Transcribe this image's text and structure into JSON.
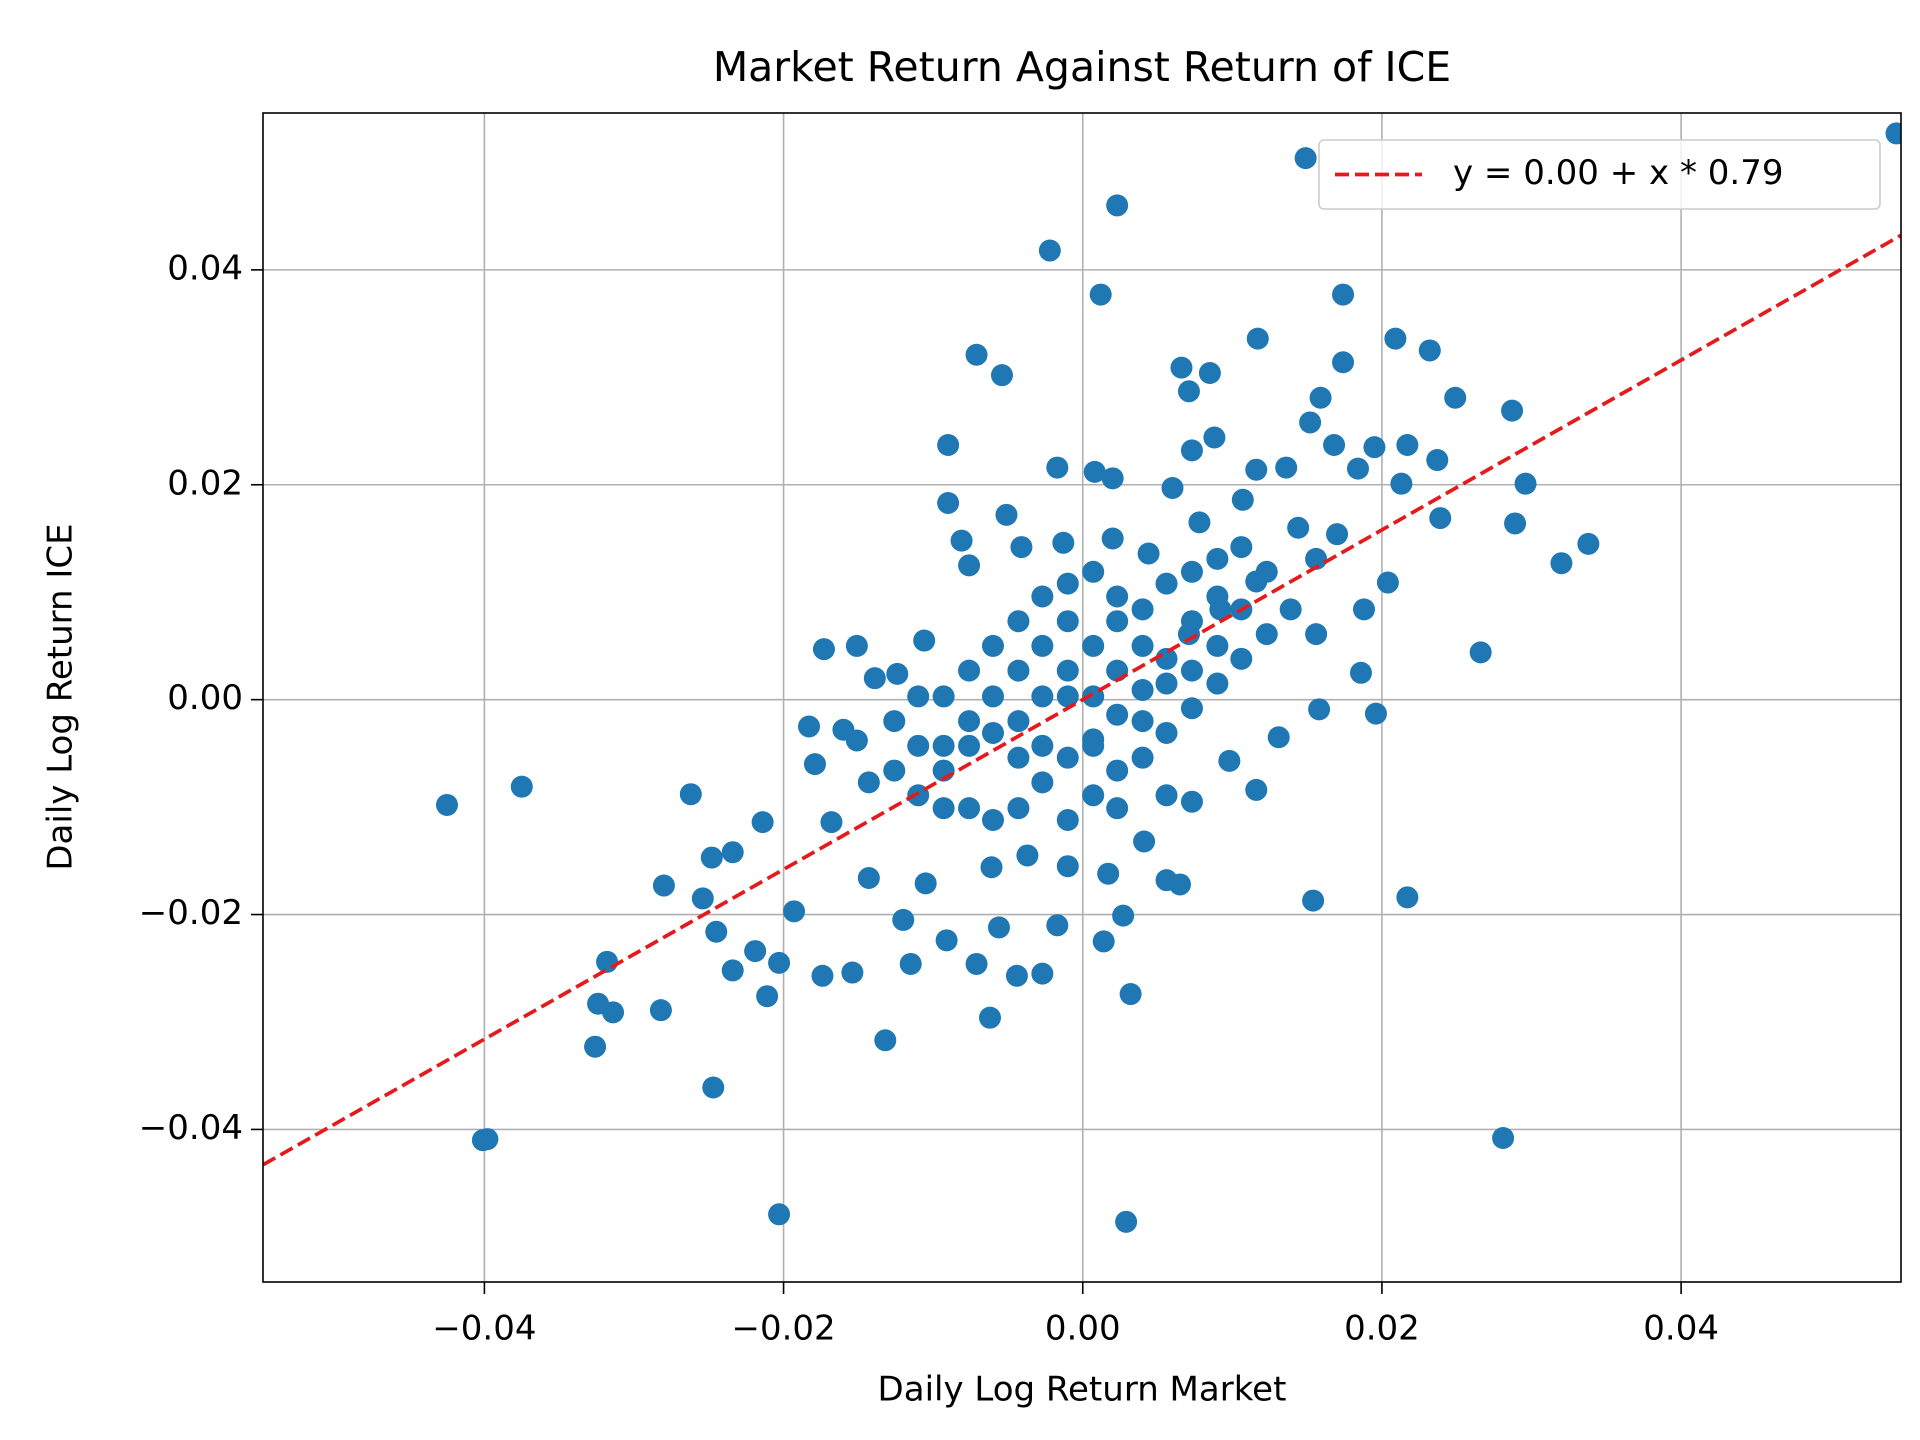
{
  "chart_data": {
    "type": "scatter",
    "title": "Market Return Against Return of ICE",
    "x_label": "Daily Log Return Market",
    "y_label": "Daily Log Return ICE",
    "xlim": [
      -0.0548,
      0.0547
    ],
    "ylim": [
      -0.0542,
      0.0546
    ],
    "xticks": [
      {
        "value": -0.04,
        "label": "−0.04"
      },
      {
        "value": -0.02,
        "label": "−0.02"
      },
      {
        "value": 0,
        "label": "0.00"
      },
      {
        "value": 0.02,
        "label": "0.02"
      },
      {
        "value": 0.04,
        "label": "0.04"
      }
    ],
    "yticks": [
      {
        "value": -0.04,
        "label": "−0.04"
      },
      {
        "value": -0.02,
        "label": "−0.02"
      },
      {
        "value": 0,
        "label": "0.00"
      },
      {
        "value": 0.02,
        "label": "0.02"
      },
      {
        "value": 0.04,
        "label": "0.04"
      }
    ],
    "grid": true,
    "legend": "upper right",
    "series": [
      {
        "color": "#1f77b4",
        "x": [
          -0.0425,
          -0.0375,
          -0.0401,
          -0.0398,
          -0.0203,
          0.0029,
          0.0281,
          0.0544,
          0.0149,
          0.0023,
          -0.0022,
          0.0012,
          0.0174,
          0.0117,
          0.0209,
          0.0232,
          -0.0071,
          -0.0054,
          0.0066,
          0.0085,
          0.0071,
          0.0174,
          0.0159,
          0.0249,
          0.0287,
          0.0152,
          0.0168,
          0.0195,
          0.0217,
          0.0237,
          -0.009,
          0.0088,
          0.0073,
          0.0296,
          0.0289,
          0.0338,
          0.032,
          0.0266,
          0.0196,
          0.0217,
          0.0154,
          0.0032,
          -0.0132,
          -0.0062,
          -0.0247,
          -0.0326,
          -0.0324,
          -0.0314,
          -0.0282,
          -0.0318,
          -0.028,
          -0.0262,
          -0.0248,
          -0.0234,
          -0.0214,
          -0.0254,
          -0.0245,
          -0.0234,
          -0.0219,
          -0.0211,
          -0.0203,
          -0.0193,
          -0.0174,
          -0.0154,
          -0.0115,
          -0.0071,
          -0.0044,
          -0.0027,
          -0.0017,
          0.0014,
          0.0027,
          -0.0173,
          -0.0151,
          -0.009,
          -0.0081,
          -0.0017,
          0.0008,
          0.002,
          -0.0051,
          0.006,
          0.0116,
          0.0136,
          0.0184,
          0.0213,
          0.0239,
          0.0204,
          0.0188,
          0.0186,
          0.0158,
          0.0131,
          0.0116,
          0.0098,
          0.0073,
          0.0065,
          0.0056,
          0.0041,
          0.0017,
          -0.001,
          -0.0037,
          -0.0061,
          -0.0056,
          -0.0091,
          -0.0105,
          -0.012,
          -0.0143,
          -0.0168,
          -0.0179,
          -0.0183,
          -0.016,
          -0.0151,
          -0.0139,
          -0.0124,
          -0.0106,
          -0.0076,
          -0.0041,
          -0.0013,
          0.002,
          0.0044,
          0.0078,
          0.0107,
          0.0144,
          0.017,
          0.0156,
          0.0116,
          0.0092,
          0.0071,
          0.0056,
          0.004,
          0.0023,
          0.0007,
          -0.001,
          -0.0027,
          -0.0043,
          -0.006,
          -0.0076,
          -0.0093,
          -0.011,
          -0.0093,
          -0.0076,
          -0.006,
          -0.0043,
          -0.0027,
          -0.001,
          0.0007,
          0.0023,
          0.004,
          0.0056,
          0.0073,
          0.009,
          0.0106,
          0.0123,
          0.0139,
          0.0156,
          0.0123,
          0.0106,
          0.009,
          0.0073,
          0.0056,
          0.004,
          0.0023,
          0.0007,
          -0.001,
          -0.0027,
          -0.0043,
          -0.006,
          -0.0076,
          -0.0093,
          -0.011,
          -0.0126,
          -0.0143,
          -0.0126,
          -0.011,
          -0.001,
          0.0007,
          0.0023,
          0.004,
          -0.001,
          -0.0027,
          -0.0043,
          0.0007,
          0.0023,
          -0.001,
          -0.0027,
          0.0073,
          0.009,
          0.0106,
          0.0073,
          0.0007,
          0.0023,
          0.0056,
          -0.0043,
          -0.006,
          -0.0076,
          -0.0093,
          0.004,
          0.0056,
          0.009
        ],
        "values": [
          -0.0098,
          -0.0081,
          -0.041,
          -0.0409,
          -0.0479,
          -0.0486,
          -0.0408,
          0.0527,
          0.0504,
          0.046,
          0.0418,
          0.0377,
          0.0377,
          0.0336,
          0.0336,
          0.0325,
          0.0321,
          0.0302,
          0.0309,
          0.0304,
          0.0287,
          0.0314,
          0.0281,
          0.0281,
          0.0269,
          0.0258,
          0.0237,
          0.0235,
          0.0237,
          0.0223,
          0.0237,
          0.0244,
          0.0232,
          0.0201,
          0.0164,
          0.0145,
          0.0127,
          0.0044,
          -0.0013,
          -0.0184,
          -0.0187,
          -0.0274,
          -0.0317,
          -0.0296,
          -0.0361,
          -0.0323,
          -0.0283,
          -0.0291,
          -0.0289,
          -0.0244,
          -0.0173,
          -0.0088,
          -0.0147,
          -0.0142,
          -0.0114,
          -0.0185,
          -0.0216,
          -0.0252,
          -0.0234,
          -0.0276,
          -0.0245,
          -0.0197,
          -0.0257,
          -0.0254,
          -0.0246,
          -0.0246,
          -0.0257,
          -0.0255,
          -0.021,
          -0.0225,
          -0.0201,
          0.0047,
          0.005,
          0.0183,
          0.0148,
          0.0216,
          0.0212,
          0.0206,
          0.0172,
          0.0197,
          0.0214,
          0.0216,
          0.0215,
          0.0201,
          0.0169,
          0.0109,
          0.0084,
          0.0025,
          -0.0009,
          -0.0035,
          -0.0084,
          -0.0057,
          -0.0095,
          -0.0172,
          -0.0168,
          -0.0132,
          -0.0162,
          -0.0155,
          -0.0145,
          -0.0156,
          -0.0212,
          -0.0224,
          -0.0171,
          -0.0205,
          -0.0166,
          -0.0114,
          -0.006,
          -0.0025,
          -0.0028,
          -0.0038,
          0.002,
          0.0024,
          0.0055,
          0.0125,
          0.0142,
          0.0146,
          0.015,
          0.0136,
          0.0165,
          0.0186,
          0.016,
          0.0154,
          0.0131,
          0.011,
          0.0084,
          0.0061,
          0.0038,
          0.0009,
          -0.0014,
          -0.0037,
          -0.0054,
          -0.0077,
          -0.0101,
          -0.0112,
          -0.0101,
          -0.0066,
          -0.0043,
          0.0003,
          0.0027,
          0.005,
          0.0073,
          0.0096,
          0.0108,
          0.0119,
          0.0096,
          0.0084,
          0.0108,
          0.0119,
          0.0131,
          0.0142,
          0.0119,
          0.0084,
          0.0061,
          0.0061,
          0.0038,
          0.0015,
          -0.0008,
          -0.0031,
          -0.0054,
          -0.0066,
          -0.0089,
          -0.0112,
          -0.0043,
          -0.002,
          -0.0031,
          -0.0043,
          -0.0101,
          -0.0089,
          -0.0066,
          -0.0077,
          -0.002,
          0.0003,
          0.0027,
          0.005,
          0.0073,
          0.005,
          0.0003,
          0.0003,
          0.0027,
          0.0003,
          0.0027,
          0.0073,
          0.005,
          0.0073,
          0.005,
          0.0084,
          0.0027,
          -0.0043,
          -0.0101,
          -0.0089,
          -0.0054,
          0.0003,
          -0.002,
          -0.0043,
          -0.002,
          0.0015,
          0.0096
        ]
      }
    ],
    "fit": {
      "name": "y = 0.00 + x * 0.79",
      "intercept": 0,
      "slope": 0.79,
      "color": "#e41a1c"
    }
  }
}
